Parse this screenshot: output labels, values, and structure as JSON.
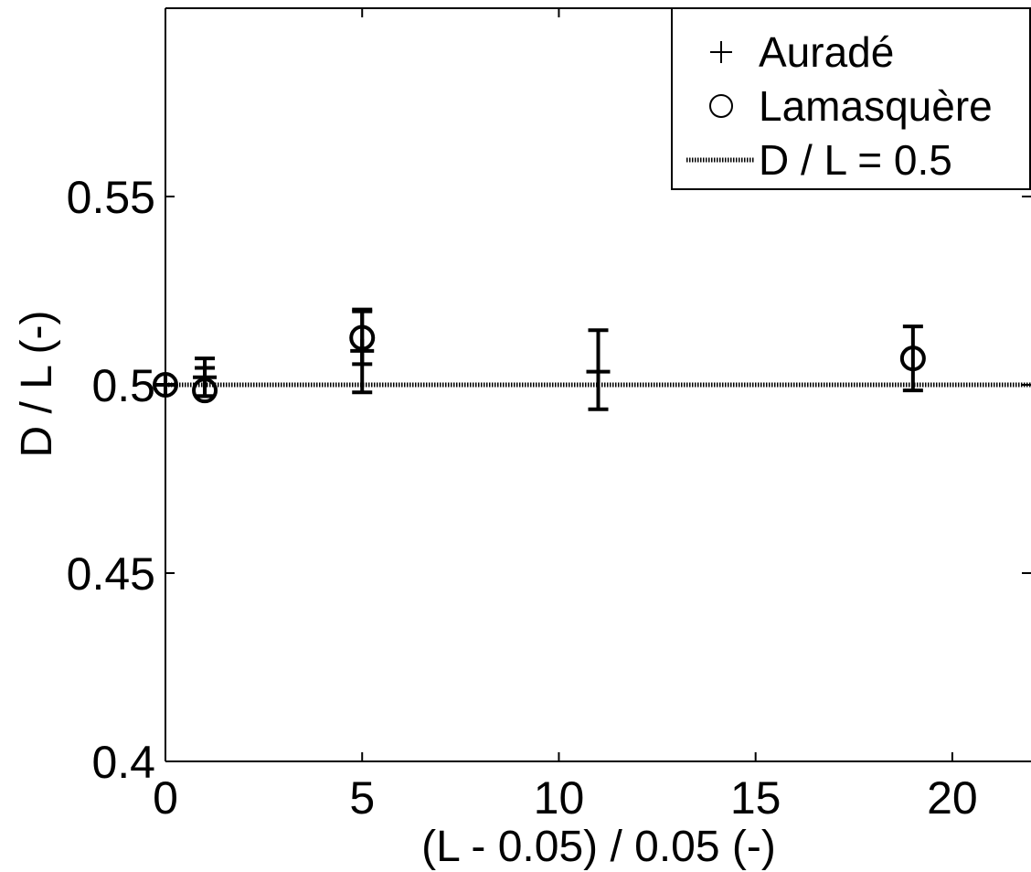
{
  "chart_data": {
    "type": "scatter",
    "xlabel": "(L - 0.05) /  0.05 (-)",
    "ylabel": "D / L (-)",
    "xlim": [
      0,
      22
    ],
    "ylim": [
      0.4,
      0.6
    ],
    "x_ticks": [
      0,
      5,
      10,
      15,
      20
    ],
    "x_tick_labels": [
      "0",
      "5",
      "10",
      "15",
      "20"
    ],
    "y_ticks": [
      0.4,
      0.45,
      0.5,
      0.55
    ],
    "y_tick_labels": [
      "0.4",
      "0.45",
      "0.5",
      "0.55"
    ],
    "grid": false,
    "legend_position": "top-right",
    "series": [
      {
        "name": "Auradé",
        "marker": "plus",
        "points": [
          {
            "x": 0,
            "y": 0.5,
            "err_low": 0.5,
            "err_high": 0.5
          },
          {
            "x": 1,
            "y": 0.502,
            "err_low": 0.497,
            "err_high": 0.507
          },
          {
            "x": 5,
            "y": 0.509,
            "err_low": 0.498,
            "err_high": 0.52
          },
          {
            "x": 11,
            "y": 0.5035,
            "err_low": 0.4935,
            "err_high": 0.5145
          }
        ]
      },
      {
        "name": "Lamasquère",
        "marker": "circle",
        "points": [
          {
            "x": 0,
            "y": 0.5,
            "err_low": 0.5,
            "err_high": 0.5
          },
          {
            "x": 1,
            "y": 0.4985,
            "err_low": 0.497,
            "err_high": 0.5045
          },
          {
            "x": 5,
            "y": 0.5125,
            "err_low": 0.5055,
            "err_high": 0.5195
          },
          {
            "x": 19,
            "y": 0.507,
            "err_low": 0.4985,
            "err_high": 0.5155
          }
        ]
      }
    ],
    "reference_line": {
      "name": "D / L = 0.5",
      "y": 0.5,
      "style": "dotted"
    }
  }
}
